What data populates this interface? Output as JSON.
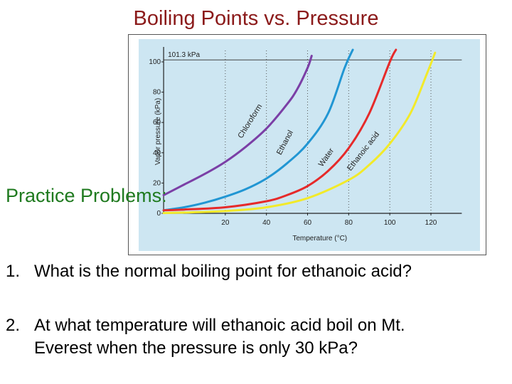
{
  "slide": {
    "title": "Boiling Points vs. Pressure",
    "side_label": "Practice Problems:"
  },
  "questions": [
    {
      "number": "1.",
      "text": "What is the normal boiling point for ethanoic acid?"
    },
    {
      "number": "2.",
      "line1": "At what temperature will ethanoic acid boil on Mt.",
      "line2": "Everest when the pressure is only 30 kPa?"
    }
  ],
  "colors": {
    "title": "#8b1a1a",
    "side_label": "#1f7a1f",
    "plot_background": "#cde6f2",
    "chloroform": "#7b3fa6",
    "ethanol": "#2196d3",
    "water": "#e62a2a",
    "ethanoic_acid": "#f2ea2a"
  },
  "chart_data": {
    "type": "line",
    "xlabel": "Temperature (°C)",
    "ylabel": "Vapor pressure (kPa)",
    "xlim": [
      -10,
      135
    ],
    "ylim": [
      0,
      108
    ],
    "xticks": [
      20,
      40,
      60,
      80,
      100,
      120
    ],
    "yticks": [
      0,
      20,
      40,
      60,
      80,
      100
    ],
    "grid": "dotted vertical lines",
    "reference_line": {
      "label": "101.3 kPa",
      "y": 101.3
    },
    "series": [
      {
        "name": "Chloroform",
        "color": "chloroform",
        "x": [
          -10,
          0,
          10,
          20,
          30,
          40,
          50,
          55,
          60,
          62
        ],
        "y": [
          12,
          19,
          26,
          34,
          44,
          56,
          72,
          82,
          96,
          104
        ]
      },
      {
        "name": "Ethanol",
        "color": "ethanol",
        "x": [
          -10,
          0,
          10,
          20,
          30,
          40,
          50,
          60,
          70,
          78,
          82
        ],
        "y": [
          2,
          4,
          7,
          11,
          16,
          23,
          33,
          46,
          66,
          96,
          108
        ]
      },
      {
        "name": "Water",
        "color": "water",
        "x": [
          -10,
          0,
          20,
          40,
          50,
          60,
          70,
          80,
          90,
          100,
          103
        ],
        "y": [
          2,
          2.5,
          4,
          8,
          12,
          18,
          28,
          43,
          66,
          100,
          108
        ]
      },
      {
        "name": "Ethanoic acid",
        "color": "ethanoic_acid",
        "x": [
          -10,
          0,
          20,
          40,
          60,
          80,
          90,
          100,
          110,
          118,
          122
        ],
        "y": [
          0.2,
          0.5,
          1.5,
          4,
          10,
          22,
          32,
          46,
          66,
          92,
          106
        ]
      }
    ]
  }
}
